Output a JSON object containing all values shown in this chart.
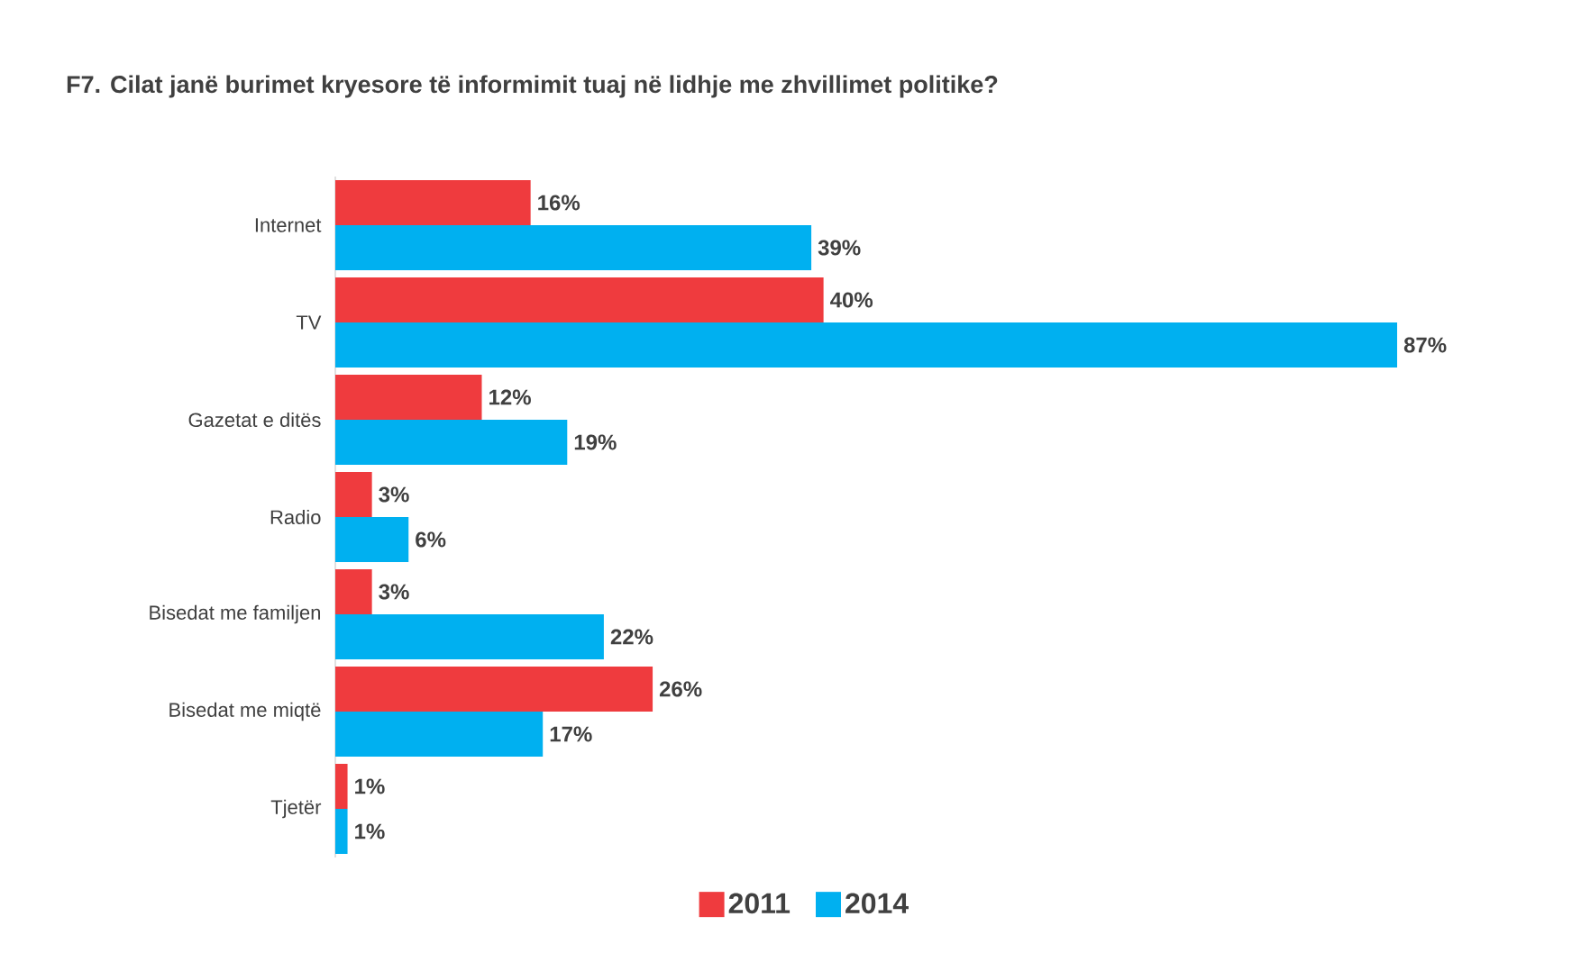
{
  "chart_data": {
    "type": "bar",
    "orientation": "horizontal",
    "title": "F7. Cilat janë burimet kryesore të informimit tuaj në lidhje me zhvillimet politike?",
    "categories": [
      "Internet",
      "TV",
      "Gazetat e ditës",
      "Radio",
      "Bisedat me familjen",
      "Bisedat me miqtë",
      "Tjetër"
    ],
    "series": [
      {
        "name": "2011",
        "color": "#ef3b3e",
        "values": [
          16,
          40,
          12,
          3,
          3,
          26,
          1
        ],
        "value_labels": [
          "16%",
          "40%",
          "12%",
          "3%",
          "3%",
          "26%",
          "1%"
        ]
      },
      {
        "name": "2014",
        "color": "#00b0f0",
        "values": [
          39,
          87,
          19,
          6,
          22,
          17,
          1
        ],
        "value_labels": [
          "39%",
          "87%",
          "19%",
          "6%",
          "22%",
          "17%",
          "1%"
        ]
      }
    ],
    "legend": "bottom"
  }
}
